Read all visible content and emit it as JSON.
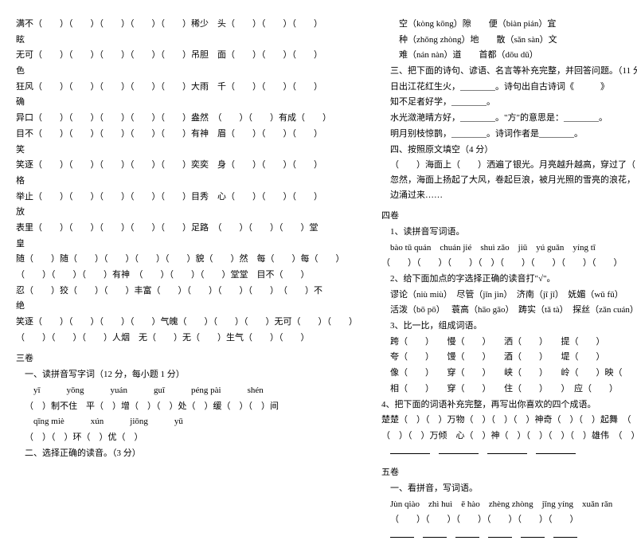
{
  "left": {
    "rows": [
      "满不（　　）（　　）（　　）（　　）（　　）稀少　头（　　）（　　）（　　）",
      "眩",
      "无可（　　）（　　）（　　）（　　）（　　）吊胆　面（　　）（　　）（　　）",
      "色",
      "狂风（　　）（　　）（　　）（　　）（　　）大雨　千（　　）（　　）（　　）",
      "确",
      "异口（　　）（　　）（　　）（　　）（　　）盎然　（　　）（　　）有成（　　）",
      "目不（　　）（　　）（　　）（　　）（　　）有神　眉（　　）（　　）（　　）",
      "笑",
      "笑逐（　　）（　　）（　　）（　　）（　　）奕奕　身（　　）（　　）（　　）",
      "格",
      "举止（　　）（　　）（　　）（　　）（　　）目秀　心（　　）（　　）（　　）",
      "放",
      "表里（　　）（　　）（　　）（　　）（　　）足路　（　　）（　　）（　　）堂",
      "皇",
      "随（　　）随（　　）（　　）（　　）（　　）貌（　　）然　每（　　）每（　　）",
      "（　　）（　　）（　　）有神　（　　）（　　）（　　）堂堂　目不（　　）",
      "忍（　　）狡（　　）（　　）丰富（　　）（　　）（　　）（　　）　（　　）不",
      "绝",
      "笑逐（　　）（　　）（　　）（　　）气魄（　　）（　　）（　　）无可（　　）（　　）",
      "（　　）（　　）（　　）人烟　无（　　）无（　　）生气（　　）（　　）"
    ],
    "section_three": "三卷",
    "q1_header": "一、读拼音写字词（12 分，每小题 1 分）",
    "pinyin_row1": [
      "yī",
      "yōng",
      "yuán",
      "guī",
      "péng pài",
      "shén"
    ],
    "pinyin_line1": "（　）制不住　平（　）增（　）（　）处（　）缓（　）（　）间",
    "pinyin_row2": [
      "qīng miè",
      "xún",
      "jiōng",
      "yū"
    ],
    "pinyin_line2": "（　）（　）环（　）优（　）",
    "q2_header": "二、选择正确的读音。（3 分）"
  },
  "right": {
    "readings": [
      "空（kòng kōng）隙　　便（biàn pián）宜",
      "种（zhǒng zhòng）地　　散（sǎn sàn）文",
      "难（nán nàn）道　　首都（dōu dū）"
    ],
    "q3_header": "三、把下面的诗句、谚语、名言等补充完整，并回答问题。（11 分）",
    "q3_lines": [
      "日出江花红生火，________。诗句出自古诗词《　　　》",
      "知不足者好学，________。",
      "水光潋滟晴方好，________。\"方\"的意思是：________。",
      "明月别枝惊鹊，________。诗词作者是________。"
    ],
    "q4_header": "四、按照原文填空（4 分）",
    "q4_body": "（　　）海面上（　　）洒遍了银光。月亮越升越高，穿过了（　　）微云。忽然，海面上扬起了大风，卷起巨浪，被月光照的雪亮的浪花，（　　）向岸边涌过来……",
    "section_four": "四卷",
    "q4_1": "1、读拼音写词语。",
    "pinyin_row": [
      "bào tū quán",
      "chuán jié",
      "shuì zǎo",
      "jiū　yú guǎn",
      "yíng tī"
    ],
    "q4_2": "2、给下面加点的字选择正确的读音打\"√\"。",
    "readings2": [
      "谬论（niù miù）　尽管（jǐn jìn）　济南（jī jǐ）　妩媚（wǔ fǔ）",
      "活泼（bō pō）　 蓑高（hāo gāo）　踌实（tǎ tà）　探丝（zǎn cuán）"
    ],
    "q4_3": "3、比一比，组成词语。",
    "comp_rows": [
      "跨（　　）　　慢（　　）　　洒（　　）　　提（　　）",
      "夸（　　）　　馒（　　）　　酒（　　）　　堤（　　）",
      "像（　　）　　穿（　　）　　峡（　　）　　岭（　　）映（",
      "相（　　）　　穿（　　）　　住（　　）　　）　应（　　）"
    ],
    "q4_4": "4、把下面的词语补充完整，再写出你喜欢的四个成语。",
    "fill_rows": [
      "楚楚（　）（　）万物（　）（　）（　）神奇（　）（　）起舞　（　）（　）盘旋",
      "（　）（　）万倾　心（　）神（　）（　）（　）（　）雄伟　（　）（　）不拔"
    ],
    "blanks_row": "________　________　________　________",
    "section_five": "五卷",
    "q5_1": "一、看拼音，写词语。",
    "pinyin5": [
      "Jùn qiào",
      "zhì huì",
      "ē hào",
      "zhèng zhòng",
      "jīng yíng",
      "xuǎn rǎn"
    ],
    "q5_parens": "（　　）（　　）（　　）（　　）（　　）（　　）",
    "q5_blanks": "________　________　________　________　________　________"
  }
}
